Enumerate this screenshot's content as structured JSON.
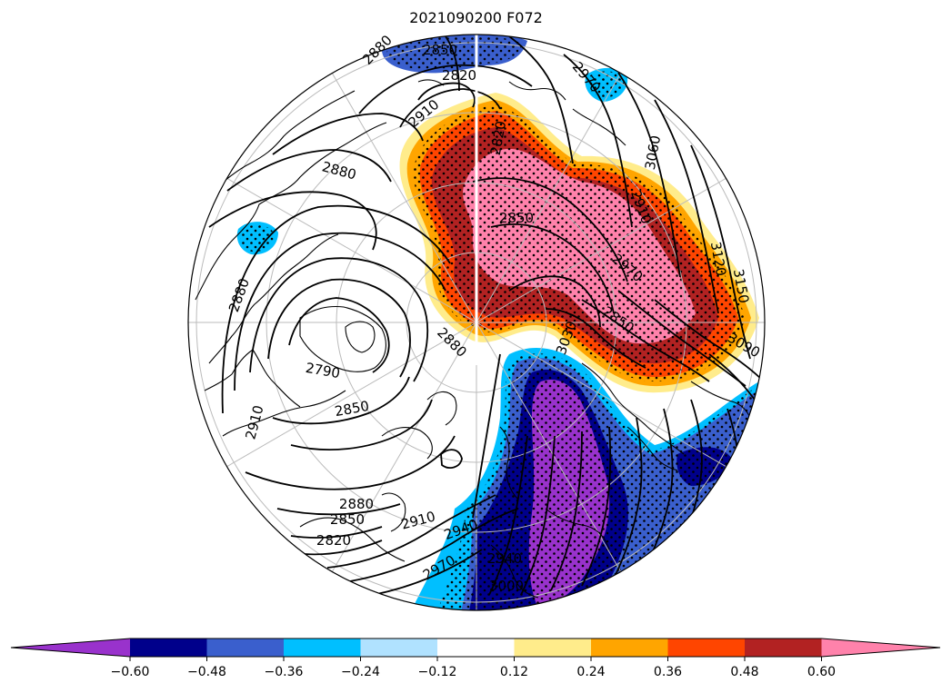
{
  "title": "2021090200 F072",
  "colorbar": {
    "colors": [
      "#9932CC",
      "#00008B",
      "#3A5FCD",
      "#00BFFF",
      "#B0E2FF",
      "#FFFFFF",
      "#FFEC8B",
      "#FFA500",
      "#FF4500",
      "#B22222",
      "#FF82AB"
    ],
    "tick_labels": [
      "−0.60",
      "−0.48",
      "−0.36",
      "−0.24",
      "−0.12",
      "0.12",
      "0.24",
      "0.36",
      "0.48",
      "0.60"
    ]
  },
  "contour_labels": [
    "2880",
    "2850",
    "2820",
    "2910",
    "2880",
    "2850",
    "2970",
    "3060",
    "3120",
    "3150",
    "3090",
    "2850",
    "2970",
    "2880",
    "2850",
    "2790",
    "2880",
    "2940",
    "2910",
    "2880",
    "2850",
    "2820",
    "2910",
    "2940",
    "2970",
    "3000",
    "3030",
    "2820",
    "2910"
  ],
  "colors": {
    "coastline": "#000000",
    "contour": "#000000",
    "graticule": "#bbbbbb",
    "stipple": "#000000"
  }
}
